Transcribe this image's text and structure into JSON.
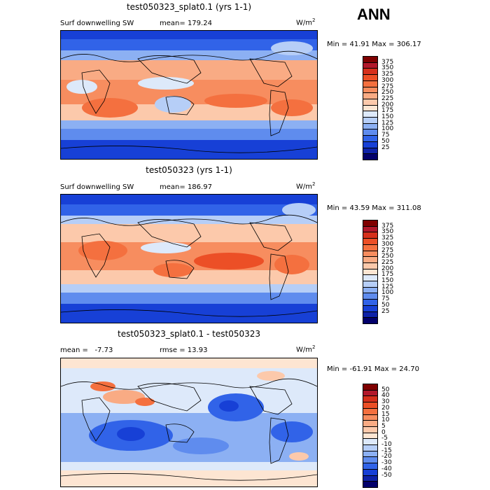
{
  "season": "ANN",
  "panels": [
    {
      "title": "test050323_splat0.1 (yrs 1-1)",
      "left_label": "Surf downwelling SW",
      "stat_label": "mean=",
      "stat_value": "179.24",
      "units_base": "W/m",
      "units_exp": "2",
      "minmax": "Min =  41.91 Max = 306.17",
      "colorbar": {
        "labels": [
          "375",
          "350",
          "325",
          "300",
          "275",
          "250",
          "225",
          "200",
          "175",
          "150",
          "125",
          "100",
          "75",
          "50",
          "25"
        ],
        "colors": [
          "#7f0000",
          "#b2182b",
          "#d6301c",
          "#ec4f26",
          "#f4703f",
          "#f78d5f",
          "#f9ab84",
          "#fcc9ab",
          "#fde5d2",
          "#dde9fa",
          "#b6cef7",
          "#8cb0f3",
          "#5f8cee",
          "#3163e8",
          "#1740d6",
          "#0e22a8",
          "#02006b"
        ]
      }
    },
    {
      "title": "test050323 (yrs 1-1)",
      "left_label": "Surf downwelling SW",
      "stat_label": "mean=",
      "stat_value": "186.97",
      "units_base": "W/m",
      "units_exp": "2",
      "minmax": "Min =  43.59 Max = 311.08",
      "colorbar": {
        "labels": [
          "375",
          "350",
          "325",
          "300",
          "275",
          "250",
          "225",
          "200",
          "175",
          "150",
          "125",
          "100",
          "75",
          "50",
          "25"
        ],
        "colors": [
          "#7f0000",
          "#b2182b",
          "#d6301c",
          "#ec4f26",
          "#f4703f",
          "#f78d5f",
          "#f9ab84",
          "#fcc9ab",
          "#fde5d2",
          "#dde9fa",
          "#b6cef7",
          "#8cb0f3",
          "#5f8cee",
          "#3163e8",
          "#1740d6",
          "#0e22a8",
          "#02006b"
        ]
      }
    },
    {
      "title": "test050323_splat0.1 - test050323",
      "left_label": "mean =   -7.73",
      "stat_label": "rmse =",
      "stat_value": "13.93",
      "units_base": "W/m",
      "units_exp": "2",
      "minmax": "Min = -61.91 Max =  24.70",
      "colorbar": {
        "labels": [
          "50",
          "40",
          "30",
          "20",
          "15",
          "10",
          "5",
          "0",
          "-5",
          "-10",
          "-15",
          "-20",
          "-30",
          "-40",
          "-50"
        ],
        "colors": [
          "#7f0000",
          "#b2182b",
          "#d6301c",
          "#ec4f26",
          "#f4703f",
          "#f78d5f",
          "#f9ab84",
          "#fcc9ab",
          "#fde5d2",
          "#dde9fa",
          "#b6cef7",
          "#8cb0f3",
          "#5f8cee",
          "#3163e8",
          "#1740d6",
          "#0e22a8",
          "#02006b"
        ]
      }
    }
  ]
}
